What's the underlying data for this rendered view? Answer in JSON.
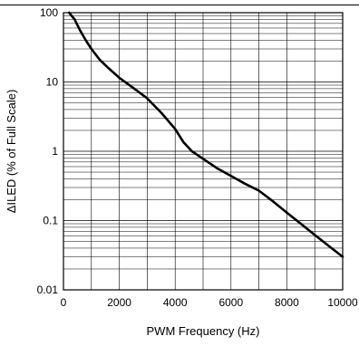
{
  "chart_data": {
    "type": "line",
    "title": "",
    "xlabel": "PWM Frequency (Hz)",
    "ylabel": "ΔILED (% of Full Scale)",
    "x_scale": "linear",
    "y_scale": "log",
    "xlim": [
      0,
      10000
    ],
    "ylim": [
      0.01,
      100
    ],
    "x_ticks": [
      0,
      2000,
      4000,
      6000,
      8000,
      10000
    ],
    "x_tick_labels": [
      "0",
      "2000",
      "4000",
      "6000",
      "8000",
      "10000"
    ],
    "y_ticks": [
      0.01,
      0.1,
      1,
      10,
      100
    ],
    "y_tick_labels": [
      "0.01",
      "0.1",
      "1",
      "10",
      "100"
    ],
    "grid": true,
    "series": [
      {
        "color": "#000000",
        "x": [
          200,
          400,
          600,
          800,
          1000,
          1300,
          1600,
          2000,
          2500,
          3000,
          3500,
          4000,
          4300,
          4600,
          5000,
          5500,
          6000,
          6500,
          7000,
          7500,
          8000,
          8500,
          9000,
          9500,
          10000
        ],
        "y": [
          100,
          80,
          55,
          40,
          30,
          21,
          16,
          11.5,
          8.2,
          5.8,
          3.6,
          2.1,
          1.35,
          1.0,
          0.78,
          0.57,
          0.44,
          0.34,
          0.27,
          0.19,
          0.13,
          0.09,
          0.062,
          0.043,
          0.03
        ]
      }
    ]
  }
}
